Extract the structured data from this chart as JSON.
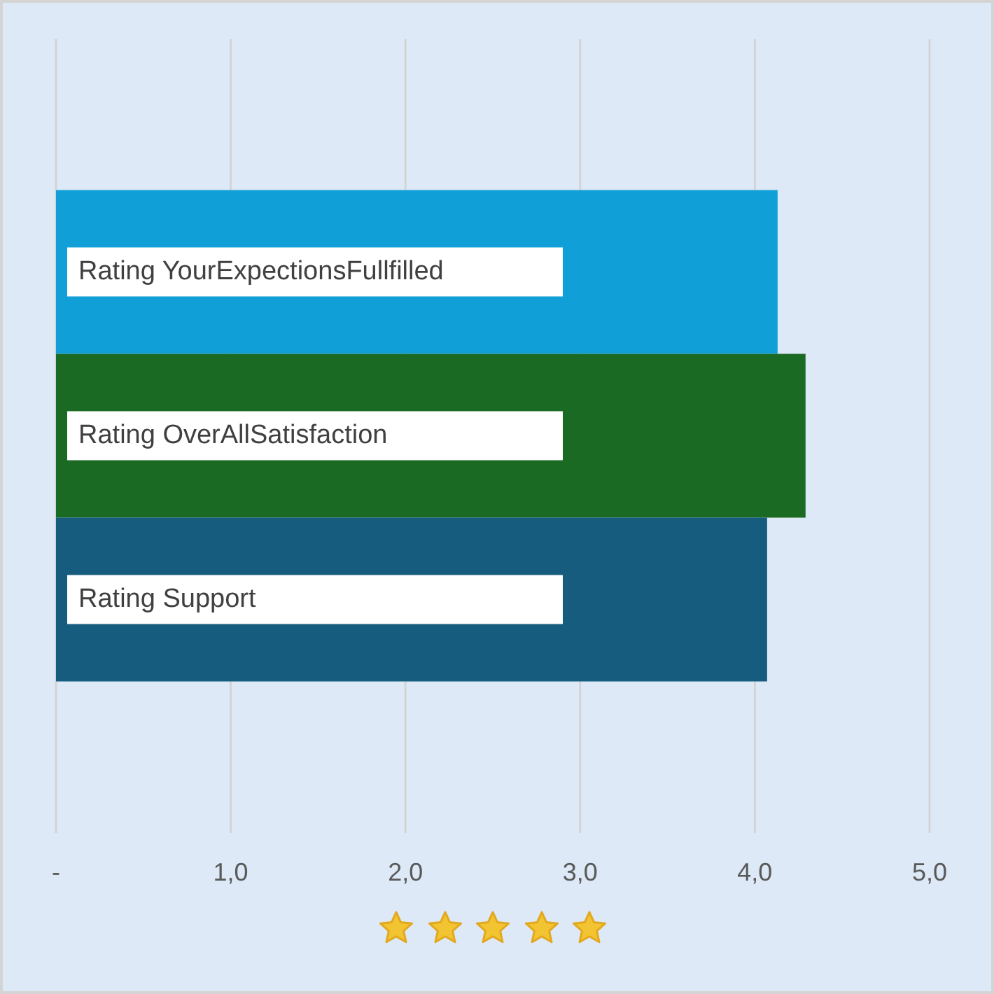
{
  "chart_data": {
    "type": "bar",
    "orientation": "horizontal",
    "categories": [
      null
    ],
    "series": [
      {
        "name": "Rating YourExpectionsFullfilled",
        "color": "#119fd8",
        "values": [
          4.13
        ]
      },
      {
        "name": "Rating OverAllSatisfaction",
        "color": "#1b6a24",
        "values": [
          4.29
        ]
      },
      {
        "name": "Rating Support",
        "color": "#155c7f",
        "values": [
          4.07
        ]
      }
    ],
    "xlim": [
      0,
      5
    ],
    "xticks": [
      {
        "value": 0,
        "label": "-"
      },
      {
        "value": 1,
        "label": "1,0"
      },
      {
        "value": 2,
        "label": "2,0"
      },
      {
        "value": 3,
        "label": "3,0"
      },
      {
        "value": 4,
        "label": "4,0"
      },
      {
        "value": 5,
        "label": "5,0"
      }
    ],
    "grid": "x"
  }
}
